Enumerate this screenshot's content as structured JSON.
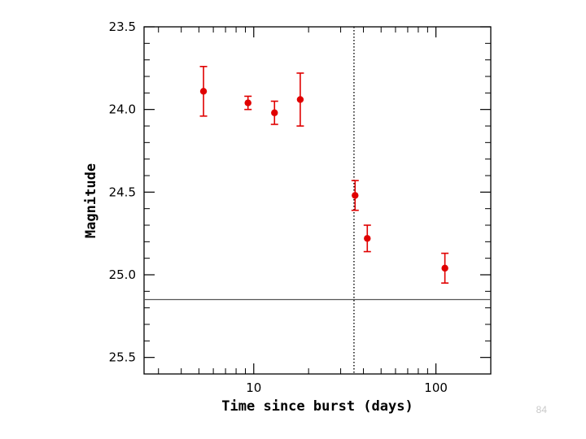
{
  "chart_data": {
    "type": "scatter",
    "title": "",
    "xlabel": "Time since burst (days)",
    "ylabel": "Magnitude",
    "xscale": "log",
    "yaxis_inverted": true,
    "xlim": [
      2.5,
      200
    ],
    "ylim": [
      23.5,
      25.6
    ],
    "xticks": [
      10,
      100
    ],
    "xtick_labels": [
      "10",
      "100"
    ],
    "yticks": [
      23.5,
      24.0,
      24.5,
      25.0,
      25.5
    ],
    "ytick_labels": [
      "23.5",
      "24.0",
      "24.5",
      "25.0",
      "25.5"
    ],
    "grid": false,
    "legend": "none",
    "series": [
      {
        "color": "#e00000",
        "points": [
          {
            "x": 5.3,
            "y": 23.89,
            "ylo": 23.74,
            "yhi": 24.04
          },
          {
            "x": 9.3,
            "y": 23.96,
            "ylo": 23.92,
            "yhi": 24.0
          },
          {
            "x": 13.0,
            "y": 24.02,
            "ylo": 23.95,
            "yhi": 24.09
          },
          {
            "x": 18.0,
            "y": 23.94,
            "ylo": 23.78,
            "yhi": 24.1
          },
          {
            "x": 36.0,
            "y": 24.52,
            "ylo": 24.43,
            "yhi": 24.61
          },
          {
            "x": 42.0,
            "y": 24.78,
            "ylo": 24.7,
            "yhi": 24.86
          },
          {
            "x": 112.0,
            "y": 24.96,
            "ylo": 24.87,
            "yhi": 25.05
          }
        ]
      }
    ],
    "reference_lines": {
      "horizontal_y": 25.15,
      "vertical_x": 35.5,
      "vertical_style": "dotted"
    }
  },
  "slide": {
    "page_number": "84"
  },
  "colors": {
    "data": "#e00000",
    "axes": "#000000",
    "slide_number": "#c9c9c9"
  }
}
